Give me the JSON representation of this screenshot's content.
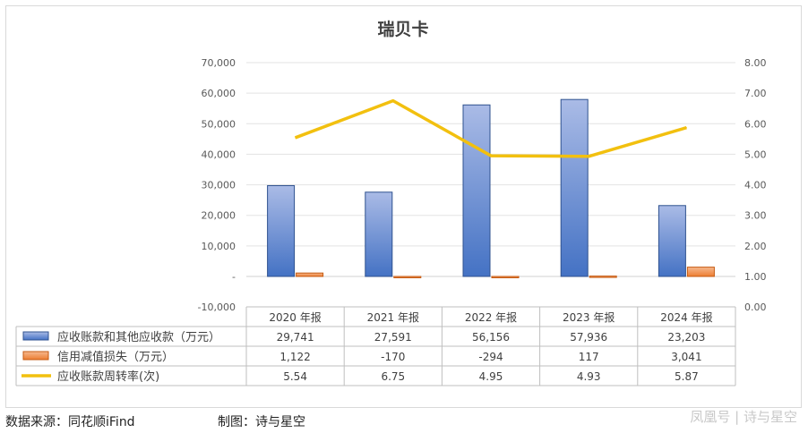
{
  "chart_data": {
    "type": "bar",
    "title": "瑞贝卡",
    "categories": [
      "2020 年报",
      "2021 年报",
      "2022 年报",
      "2023 年报",
      "2024 年报"
    ],
    "series": [
      {
        "name": "应收账款和其他应收款（万元）",
        "type": "bar",
        "axis": "left",
        "color": "#4472c4",
        "values": [
          29741,
          27591,
          56156,
          57936,
          23203
        ],
        "labels": [
          "29,741",
          "27,591",
          "56,156",
          "57,936",
          "23,203"
        ]
      },
      {
        "name": "信用减值损失（万元）",
        "type": "bar",
        "axis": "left",
        "color": "#ed7d31",
        "values": [
          1122,
          -170,
          -294,
          117,
          3041
        ],
        "labels": [
          "1,122",
          "-170",
          "-294",
          "117",
          "3,041"
        ]
      },
      {
        "name": "应收账款周转率(次)",
        "type": "line",
        "axis": "right",
        "color": "#f2c00f",
        "values": [
          5.54,
          6.75,
          4.95,
          4.93,
          5.87
        ],
        "labels": [
          "5.54",
          "6.75",
          "4.95",
          "4.93",
          "5.87"
        ]
      }
    ],
    "y_left": {
      "ylim": [
        -10000,
        70000
      ],
      "tick_labels": [
        "-10,000",
        "-",
        "10,000",
        "20,000",
        "30,000",
        "40,000",
        "50,000",
        "60,000",
        "70,000"
      ]
    },
    "y_right": {
      "ylim": [
        0,
        8
      ],
      "tick_labels": [
        "0.00",
        "1.00",
        "2.00",
        "3.00",
        "4.00",
        "5.00",
        "6.00",
        "7.00",
        "8.00"
      ]
    },
    "grid": true,
    "legend": "data-table"
  },
  "footer": {
    "source": "数据来源：同花顺iFind",
    "maker": "制图：诗与星空",
    "watermark": "凤凰号 | 诗与星空"
  }
}
